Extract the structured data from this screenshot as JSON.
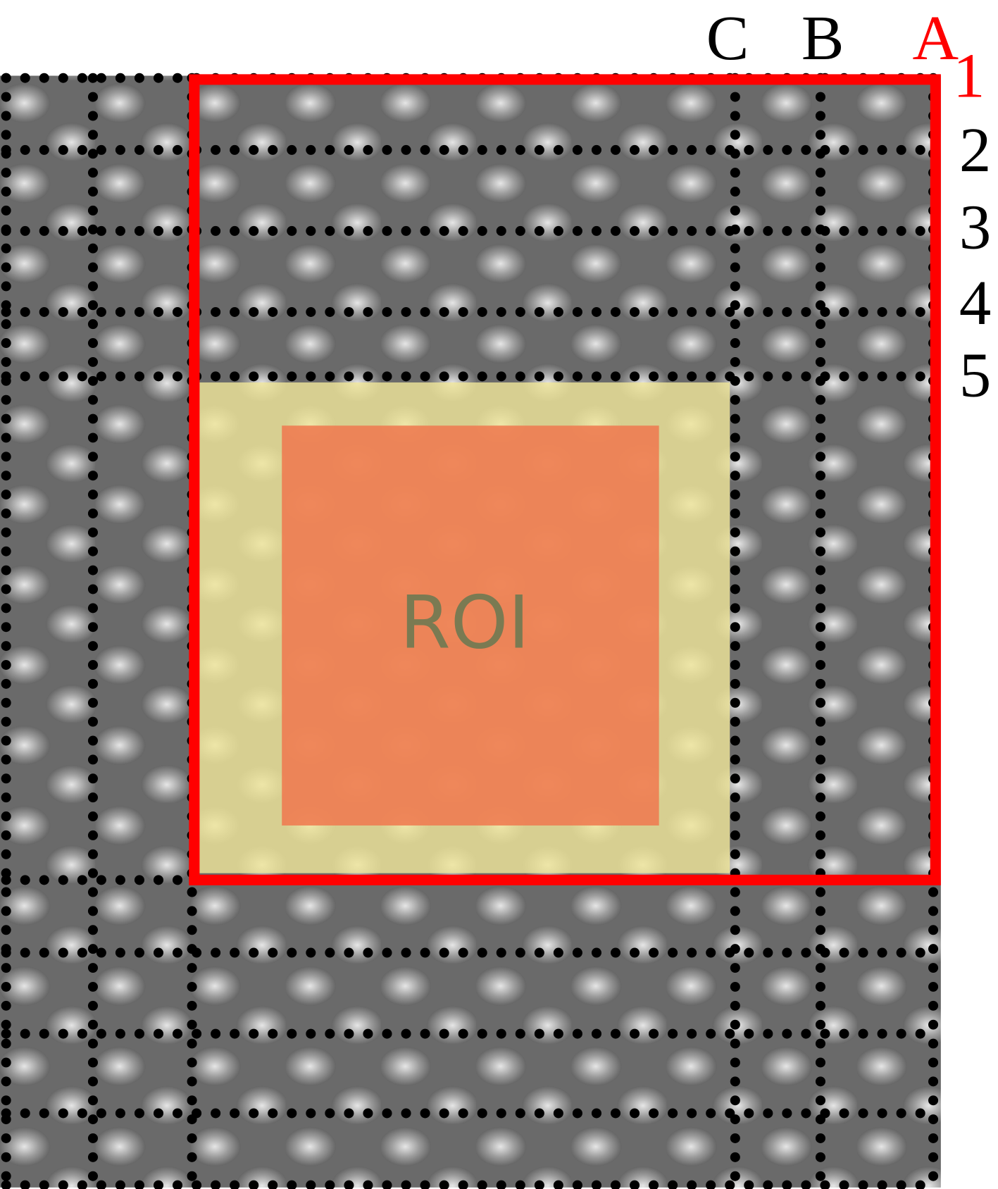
{
  "image": {
    "columns": [
      "C",
      "B",
      "A"
    ],
    "rows": [
      "1",
      "2",
      "3",
      "4",
      "5"
    ],
    "region_label": "ROI"
  }
}
